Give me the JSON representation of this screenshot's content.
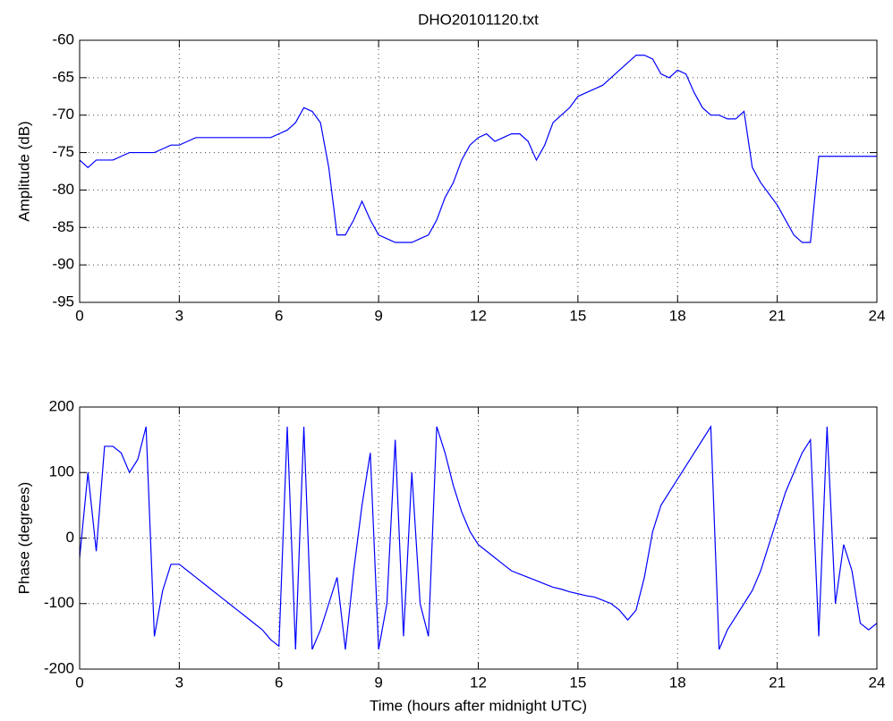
{
  "chart_data": [
    {
      "type": "line",
      "title": "DHO20101120.txt",
      "ylabel": "Amplitude (dB)",
      "x": [
        0,
        0.25,
        0.5,
        0.75,
        1,
        1.25,
        1.5,
        1.75,
        2,
        2.25,
        2.5,
        2.75,
        3,
        3.25,
        3.5,
        3.75,
        4,
        4.25,
        4.5,
        4.75,
        5,
        5.25,
        5.5,
        5.75,
        6,
        6.25,
        6.5,
        6.75,
        7,
        7.25,
        7.5,
        7.75,
        8,
        8.25,
        8.5,
        8.75,
        9,
        9.25,
        9.5,
        9.75,
        10,
        10.25,
        10.5,
        10.75,
        11,
        11.25,
        11.5,
        11.75,
        12,
        12.25,
        12.5,
        12.75,
        13,
        13.25,
        13.5,
        13.75,
        14,
        14.25,
        14.5,
        14.75,
        15,
        15.25,
        15.5,
        15.75,
        16,
        16.25,
        16.5,
        16.75,
        17,
        17.25,
        17.5,
        17.75,
        18,
        18.25,
        18.5,
        18.75,
        19,
        19.25,
        19.5,
        19.75,
        20,
        20.25,
        20.5,
        20.75,
        21,
        21.25,
        21.5,
        21.75,
        22,
        22.25,
        22.5,
        22.75,
        23,
        23.25,
        23.5,
        23.75,
        24
      ],
      "series": [
        {
          "color": "#0000ff",
          "values": [
            -76,
            -77,
            -76,
            -76,
            -76,
            -75.5,
            -75,
            -75,
            -75,
            -75,
            -74.5,
            -74,
            -74,
            -73.5,
            -73,
            -73,
            -73,
            -73,
            -73,
            -73,
            -73,
            -73,
            -73,
            -73,
            -72.5,
            -72,
            -71,
            -69,
            -69.5,
            -71,
            -77,
            -86,
            -86,
            -84,
            -81.5,
            -84,
            -86,
            -86.5,
            -87,
            -87,
            -87,
            -86.5,
            -86,
            -84,
            -81,
            -79,
            -76,
            -74,
            -73,
            -72.5,
            -73.5,
            -73,
            -72.5,
            -72.5,
            -73.5,
            -76,
            -74,
            -71,
            -70,
            -69,
            -67.5,
            -67,
            -66.5,
            -66,
            -65,
            -64,
            -63,
            -62,
            -62,
            -62.5,
            -64.5,
            -65,
            -64,
            -64.5,
            -67,
            -69,
            -70,
            -70,
            -70.5,
            -70.5,
            -69.5,
            -77,
            -79,
            -80.5,
            -82,
            -84,
            -86,
            -87,
            -87,
            -75.5,
            -75.5,
            -75.5,
            -75.5,
            -75.5,
            -75.5,
            -75.5,
            -75.5
          ]
        }
      ],
      "xlim": [
        0,
        24
      ],
      "xticks": [
        0,
        3,
        6,
        9,
        12,
        15,
        18,
        21,
        24
      ],
      "ylim": [
        -95,
        -60
      ],
      "yticks": [
        -95,
        -90,
        -85,
        -80,
        -75,
        -70,
        -65,
        -60
      ],
      "grid": true
    },
    {
      "type": "line",
      "xlabel": "Time (hours after midnight UTC)",
      "ylabel": "Phase (degrees)",
      "x": [
        0,
        0.25,
        0.5,
        0.75,
        1,
        1.25,
        1.5,
        1.75,
        2,
        2.25,
        2.5,
        2.75,
        3,
        3.25,
        3.5,
        3.75,
        4,
        4.25,
        4.5,
        4.75,
        5,
        5.25,
        5.5,
        5.75,
        6,
        6.25,
        6.5,
        6.75,
        7,
        7.25,
        7.5,
        7.75,
        8,
        8.25,
        8.5,
        8.75,
        9,
        9.25,
        9.5,
        9.75,
        10,
        10.25,
        10.5,
        10.75,
        11,
        11.25,
        11.5,
        11.75,
        12,
        12.25,
        12.5,
        12.75,
        13,
        13.25,
        13.5,
        13.75,
        14,
        14.25,
        14.5,
        14.75,
        15,
        15.25,
        15.5,
        15.75,
        16,
        16.25,
        16.5,
        16.75,
        17,
        17.25,
        17.5,
        17.75,
        18,
        18.25,
        18.5,
        18.75,
        19,
        19.25,
        19.5,
        19.75,
        20,
        20.25,
        20.5,
        20.75,
        21,
        21.25,
        21.5,
        21.75,
        22,
        22.25,
        22.5,
        22.75,
        23,
        23.25,
        23.5,
        23.75,
        24
      ],
      "series": [
        {
          "color": "#0000ff",
          "values": [
            -30,
            100,
            -20,
            140,
            140,
            130,
            100,
            120,
            170,
            -150,
            -80,
            -40,
            -40,
            -50,
            -60,
            -70,
            -80,
            -90,
            -100,
            -110,
            -120,
            -130,
            -140,
            -155,
            -165,
            170,
            -170,
            170,
            -170,
            -140,
            -100,
            -60,
            -170,
            -50,
            50,
            130,
            -170,
            -100,
            150,
            -150,
            100,
            -100,
            -150,
            170,
            130,
            80,
            40,
            10,
            -10,
            -20,
            -30,
            -40,
            -50,
            -55,
            -60,
            -65,
            -70,
            -75,
            -78,
            -82,
            -85,
            -88,
            -90,
            -95,
            -100,
            -110,
            -125,
            -110,
            -60,
            10,
            50,
            70,
            90,
            110,
            130,
            150,
            170,
            -170,
            -140,
            -120,
            -100,
            -80,
            -50,
            -10,
            30,
            70,
            100,
            130,
            150,
            -150,
            170,
            -100,
            -10,
            -50,
            -130,
            -140,
            -130
          ]
        }
      ],
      "xlim": [
        0,
        24
      ],
      "xticks": [
        0,
        3,
        6,
        9,
        12,
        15,
        18,
        21,
        24
      ],
      "ylim": [
        -200,
        200
      ],
      "yticks": [
        -200,
        -100,
        0,
        100,
        200
      ],
      "grid": true
    }
  ]
}
